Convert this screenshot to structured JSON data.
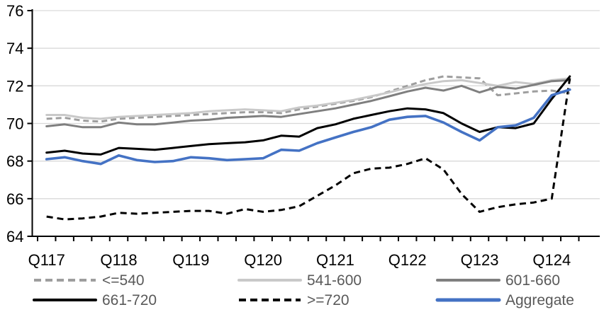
{
  "chart_data": {
    "type": "line",
    "title": "",
    "x_axis_labels": [
      "Q117",
      "Q118",
      "Q119",
      "Q120",
      "Q121",
      "Q122",
      "Q123",
      "Q124"
    ],
    "categories": [
      "2017Q1",
      "2017Q2",
      "2017Q3",
      "2017Q4",
      "2018Q1",
      "2018Q2",
      "2018Q3",
      "2018Q4",
      "2019Q1",
      "2019Q2",
      "2019Q3",
      "2019Q4",
      "2020Q1",
      "2020Q2",
      "2020Q3",
      "2020Q4",
      "2021Q1",
      "2021Q2",
      "2021Q3",
      "2021Q4",
      "2022Q1",
      "2022Q2",
      "2022Q3",
      "2022Q4",
      "2023Q1",
      "2023Q2",
      "2023Q3",
      "2023Q4",
      "2024Q1",
      "2024Q2"
    ],
    "ylim": [
      64,
      76
    ],
    "y_ticks": [
      76,
      74,
      72,
      70,
      68,
      66,
      64
    ],
    "grid": true,
    "legend_position": "bottom",
    "series": [
      {
        "name": "<=540",
        "color": "#9e9e9e",
        "style": "dashed",
        "values": [
          70.25,
          70.3,
          70.15,
          70.1,
          70.25,
          70.3,
          70.35,
          70.4,
          70.45,
          70.5,
          70.55,
          70.6,
          70.6,
          70.55,
          70.75,
          70.9,
          71.05,
          71.2,
          71.4,
          71.7,
          72.0,
          72.3,
          72.5,
          72.45,
          72.4,
          71.5,
          71.6,
          71.7,
          71.75,
          71.6
        ]
      },
      {
        "name": "541-600",
        "color": "#c9c9c9",
        "style": "solid",
        "values": [
          70.45,
          70.45,
          70.3,
          70.25,
          70.35,
          70.4,
          70.45,
          70.5,
          70.55,
          70.65,
          70.7,
          70.75,
          70.7,
          70.65,
          70.85,
          70.95,
          71.1,
          71.25,
          71.45,
          71.65,
          71.9,
          72.1,
          72.25,
          72.3,
          72.15,
          72.0,
          72.2,
          72.1,
          72.3,
          72.4
        ]
      },
      {
        "name": "601-660",
        "color": "#7f7f7f",
        "style": "solid",
        "values": [
          69.85,
          69.95,
          69.8,
          69.8,
          70.05,
          69.95,
          69.95,
          70.05,
          70.15,
          70.2,
          70.3,
          70.35,
          70.4,
          70.35,
          70.5,
          70.65,
          70.8,
          71.0,
          71.2,
          71.45,
          71.7,
          71.9,
          71.75,
          72.0,
          71.65,
          71.95,
          71.85,
          72.05,
          72.25,
          72.3
        ]
      },
      {
        "name": "661-720",
        "color": "#000000",
        "style": "solid",
        "values": [
          68.45,
          68.55,
          68.4,
          68.35,
          68.7,
          68.65,
          68.6,
          68.7,
          68.8,
          68.9,
          68.95,
          69.0,
          69.1,
          69.35,
          69.3,
          69.75,
          69.95,
          70.25,
          70.45,
          70.65,
          70.8,
          70.75,
          70.55,
          70.0,
          69.55,
          69.8,
          69.75,
          70.0,
          71.3,
          72.5
        ]
      },
      {
        "name": ">=720",
        "color": "#000000",
        "style": "dashed",
        "values": [
          65.05,
          64.9,
          64.95,
          65.05,
          65.25,
          65.2,
          65.25,
          65.3,
          65.35,
          65.35,
          65.2,
          65.45,
          65.3,
          65.4,
          65.6,
          66.15,
          66.7,
          67.35,
          67.6,
          67.65,
          67.85,
          68.15,
          67.55,
          66.25,
          65.3,
          65.55,
          65.7,
          65.8,
          66.0,
          72.4
        ]
      },
      {
        "name": "Aggregate",
        "color": "#4472c4",
        "style": "solid",
        "values": [
          68.1,
          68.2,
          68.0,
          67.85,
          68.3,
          68.05,
          67.95,
          68.0,
          68.2,
          68.15,
          68.05,
          68.1,
          68.15,
          68.6,
          68.55,
          68.95,
          69.25,
          69.55,
          69.8,
          70.2,
          70.35,
          70.4,
          70.05,
          69.55,
          69.1,
          69.8,
          69.9,
          70.3,
          71.5,
          71.8
        ]
      }
    ]
  },
  "colors": {
    "background": "#ffffff",
    "gridline": "#d9d9d9",
    "axis_line": "#000000",
    "axis_text": "#000000",
    "legend_text": "#595959"
  }
}
